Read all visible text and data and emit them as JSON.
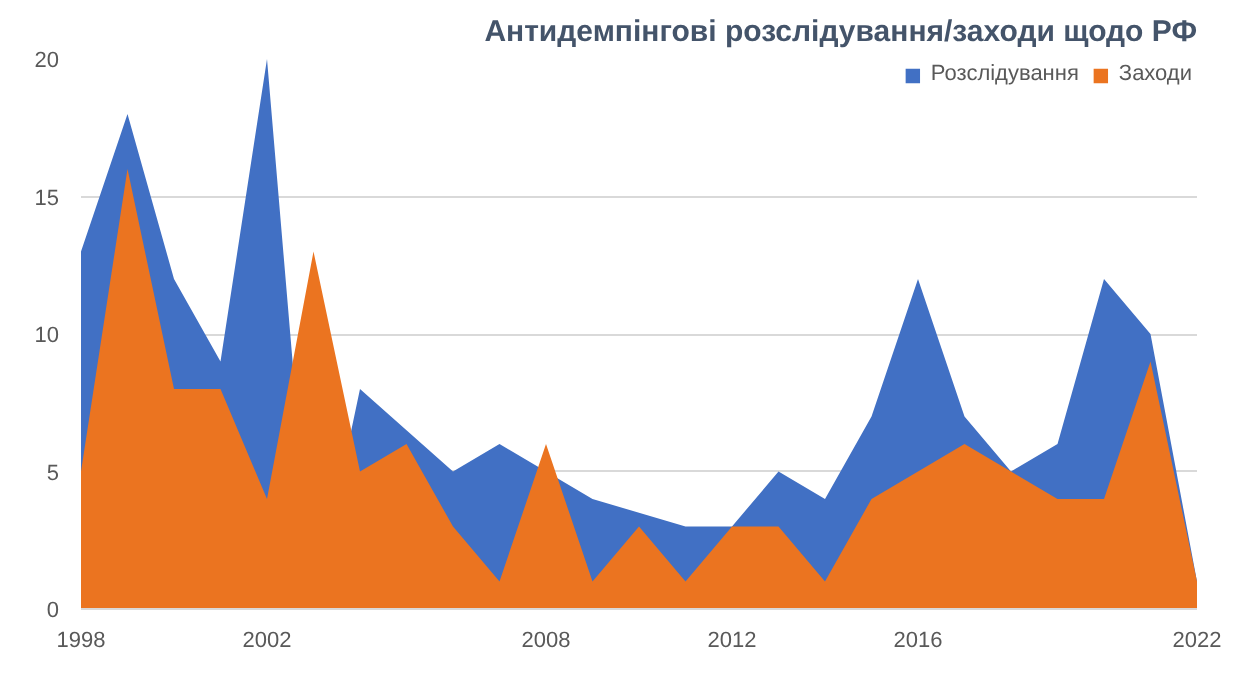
{
  "chart_data": {
    "type": "area",
    "title": "Антидемпінгові розслідування/заходи щодо РФ",
    "x": [
      1998,
      1999,
      2000,
      2001,
      2002,
      2003,
      2004,
      2005,
      2006,
      2007,
      2008,
      2009,
      2010,
      2011,
      2012,
      2013,
      2014,
      2015,
      2016,
      2017,
      2018,
      2019,
      2020,
      2021,
      2022
    ],
    "series": [
      {
        "name": "Розслідування",
        "color": "#4170c4",
        "values": [
          13,
          18,
          12,
          9,
          20,
          0,
          8,
          null,
          5,
          6,
          null,
          4,
          null,
          3,
          3,
          5,
          4,
          7,
          12,
          7,
          5,
          6,
          12,
          10,
          1
        ]
      },
      {
        "name": "Заходи",
        "color": "#eb7420",
        "values": [
          5,
          16,
          8,
          8,
          4,
          13,
          5,
          6,
          3,
          1,
          6,
          1,
          3,
          1,
          3,
          3,
          1,
          4,
          5,
          6,
          5,
          4,
          4,
          9,
          1
        ]
      }
    ],
    "xlim": [
      1998,
      2022
    ],
    "xticks": [
      1998,
      2002,
      2008,
      2012,
      2016,
      2022
    ],
    "ylim": [
      0,
      20
    ],
    "yticks": [
      0,
      5,
      10,
      15,
      20
    ],
    "grid": "y",
    "legend": "top right"
  }
}
